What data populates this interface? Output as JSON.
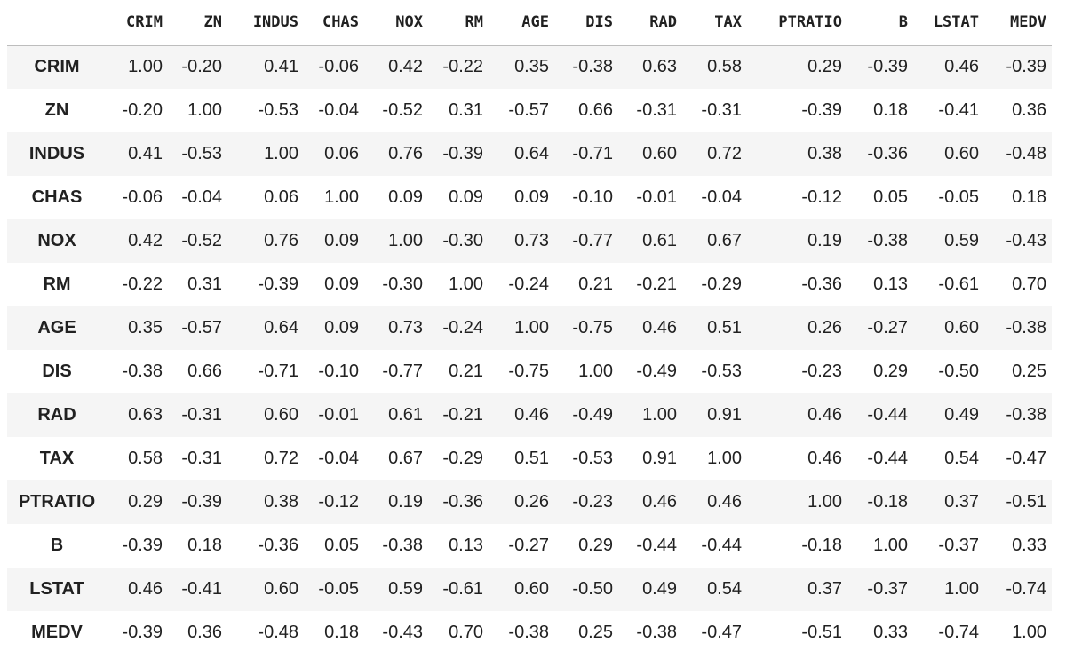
{
  "columns": [
    "CRIM",
    "ZN",
    "INDUS",
    "CHAS",
    "NOX",
    "RM",
    "AGE",
    "DIS",
    "RAD",
    "TAX",
    "PTRATIO",
    "B",
    "LSTAT",
    "MEDV"
  ],
  "rows": [
    {
      "label": "CRIM",
      "values": [
        "1.00",
        "-0.20",
        "0.41",
        "-0.06",
        "0.42",
        "-0.22",
        "0.35",
        "-0.38",
        "0.63",
        "0.58",
        "0.29",
        "-0.39",
        "0.46",
        "-0.39"
      ]
    },
    {
      "label": "ZN",
      "values": [
        "-0.20",
        "1.00",
        "-0.53",
        "-0.04",
        "-0.52",
        "0.31",
        "-0.57",
        "0.66",
        "-0.31",
        "-0.31",
        "-0.39",
        "0.18",
        "-0.41",
        "0.36"
      ]
    },
    {
      "label": "INDUS",
      "values": [
        "0.41",
        "-0.53",
        "1.00",
        "0.06",
        "0.76",
        "-0.39",
        "0.64",
        "-0.71",
        "0.60",
        "0.72",
        "0.38",
        "-0.36",
        "0.60",
        "-0.48"
      ]
    },
    {
      "label": "CHAS",
      "values": [
        "-0.06",
        "-0.04",
        "0.06",
        "1.00",
        "0.09",
        "0.09",
        "0.09",
        "-0.10",
        "-0.01",
        "-0.04",
        "-0.12",
        "0.05",
        "-0.05",
        "0.18"
      ]
    },
    {
      "label": "NOX",
      "values": [
        "0.42",
        "-0.52",
        "0.76",
        "0.09",
        "1.00",
        "-0.30",
        "0.73",
        "-0.77",
        "0.61",
        "0.67",
        "0.19",
        "-0.38",
        "0.59",
        "-0.43"
      ]
    },
    {
      "label": "RM",
      "values": [
        "-0.22",
        "0.31",
        "-0.39",
        "0.09",
        "-0.30",
        "1.00",
        "-0.24",
        "0.21",
        "-0.21",
        "-0.29",
        "-0.36",
        "0.13",
        "-0.61",
        "0.70"
      ]
    },
    {
      "label": "AGE",
      "values": [
        "0.35",
        "-0.57",
        "0.64",
        "0.09",
        "0.73",
        "-0.24",
        "1.00",
        "-0.75",
        "0.46",
        "0.51",
        "0.26",
        "-0.27",
        "0.60",
        "-0.38"
      ]
    },
    {
      "label": "DIS",
      "values": [
        "-0.38",
        "0.66",
        "-0.71",
        "-0.10",
        "-0.77",
        "0.21",
        "-0.75",
        "1.00",
        "-0.49",
        "-0.53",
        "-0.23",
        "0.29",
        "-0.50",
        "0.25"
      ]
    },
    {
      "label": "RAD",
      "values": [
        "0.63",
        "-0.31",
        "0.60",
        "-0.01",
        "0.61",
        "-0.21",
        "0.46",
        "-0.49",
        "1.00",
        "0.91",
        "0.46",
        "-0.44",
        "0.49",
        "-0.38"
      ]
    },
    {
      "label": "TAX",
      "values": [
        "0.58",
        "-0.31",
        "0.72",
        "-0.04",
        "0.67",
        "-0.29",
        "0.51",
        "-0.53",
        "0.91",
        "1.00",
        "0.46",
        "-0.44",
        "0.54",
        "-0.47"
      ]
    },
    {
      "label": "PTRATIO",
      "values": [
        "0.29",
        "-0.39",
        "0.38",
        "-0.12",
        "0.19",
        "-0.36",
        "0.26",
        "-0.23",
        "0.46",
        "0.46",
        "1.00",
        "-0.18",
        "0.37",
        "-0.51"
      ]
    },
    {
      "label": "B",
      "values": [
        "-0.39",
        "0.18",
        "-0.36",
        "0.05",
        "-0.38",
        "0.13",
        "-0.27",
        "0.29",
        "-0.44",
        "-0.44",
        "-0.18",
        "1.00",
        "-0.37",
        "0.33"
      ]
    },
    {
      "label": "LSTAT",
      "values": [
        "0.46",
        "-0.41",
        "0.60",
        "-0.05",
        "0.59",
        "-0.61",
        "0.60",
        "-0.50",
        "0.49",
        "0.54",
        "0.37",
        "-0.37",
        "1.00",
        "-0.74"
      ]
    },
    {
      "label": "MEDV",
      "values": [
        "-0.39",
        "0.36",
        "-0.48",
        "0.18",
        "-0.43",
        "0.70",
        "-0.38",
        "0.25",
        "-0.38",
        "-0.47",
        "-0.51",
        "0.33",
        "-0.74",
        "1.00"
      ]
    }
  ],
  "colors": {
    "stripe": "#f5f5f5",
    "text": "#212121",
    "header_rule": "#bdbdbd"
  }
}
